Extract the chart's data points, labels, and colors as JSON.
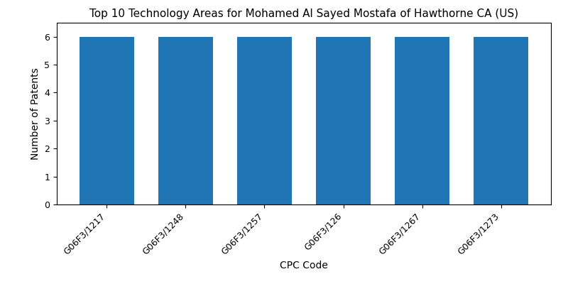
{
  "title": "Top 10 Technology Areas for Mohamed Al Sayed Mostafa of Hawthorne CA (US)",
  "xlabel": "CPC Code",
  "ylabel": "Number of Patents",
  "categories": [
    "G06F3/1217",
    "G06F3/1248",
    "G06F3/1257",
    "G06F3/126",
    "G06F3/1267",
    "G06F3/1273"
  ],
  "values": [
    6,
    6,
    6,
    6,
    6,
    6
  ],
  "bar_color": "#2076b4",
  "ylim": [
    0,
    6.5
  ],
  "yticks": [
    0,
    1,
    2,
    3,
    4,
    5,
    6
  ],
  "background_color": "#ffffff",
  "title_fontsize": 11,
  "label_fontsize": 10,
  "tick_fontsize": 9,
  "bar_width": 0.7
}
